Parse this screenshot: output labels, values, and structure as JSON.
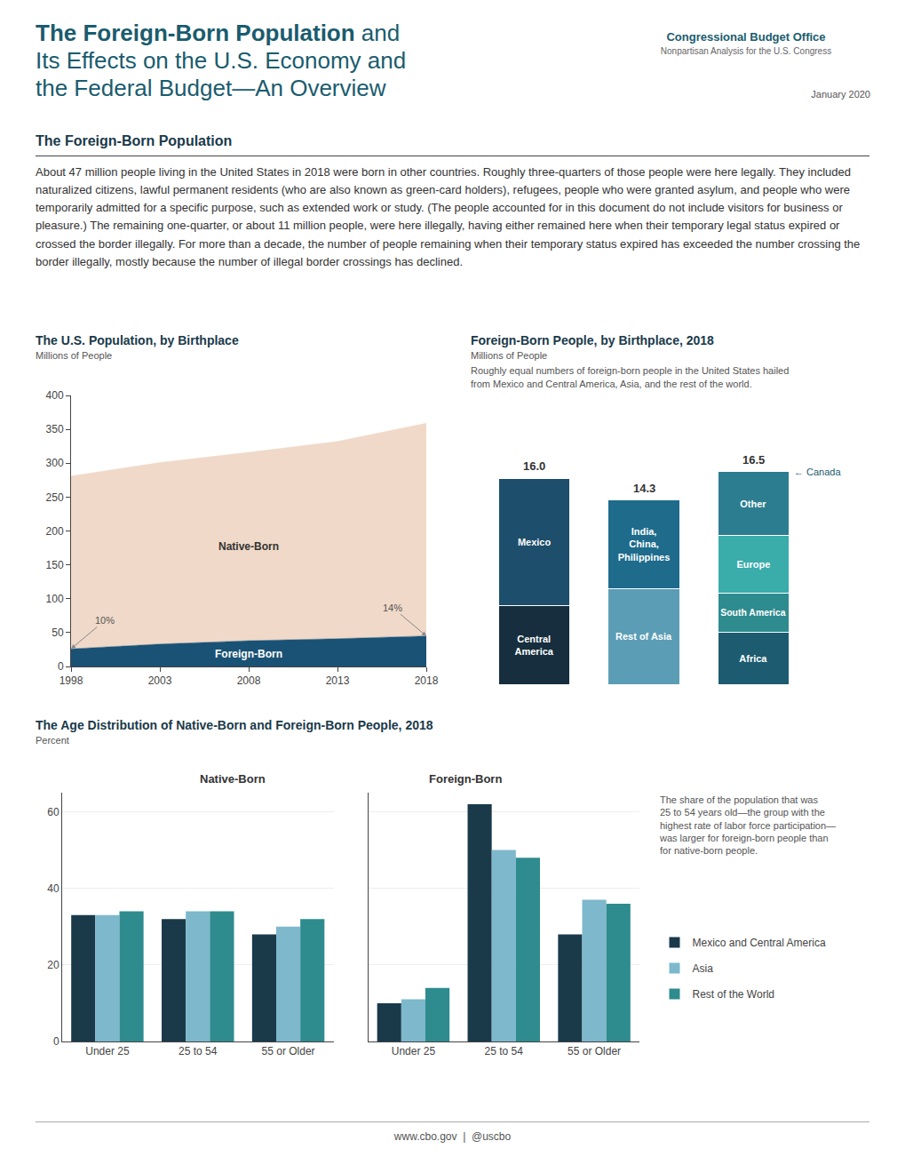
{
  "page": {
    "title_bold": "The Foreign-Born Population",
    "title_rest": " and\nIts Effects on the U.S. Economy and\nthe Federal Budget—An Overview",
    "organization": "Congressional Budget Office",
    "tagline": "Nonpartisan Analysis for the U.S. Congress",
    "date": "January 2020",
    "section_title": "The Foreign-Born Population",
    "body_text": "About 47 million people living in the United States in 2018 were born in other countries. Roughly three-quarters of those people were here legally. They included naturalized citizens, lawful permanent residents (who are also known as green-card holders), refugees, people who were granted asylum, and people who were temporarily admitted for a specific purpose, such as extended work or study. (The people accounted for in this document do not include visitors for business or pleasure.) The remaining one-quarter, or about 11 million people, were here illegally, having either remained here when their temporary legal status expired or crossed the border illegally. For more than a decade, the number of people remaining when their temporary status expired has exceeded the number crossing the border illegally, mostly because the number of illegal border crossings has declined.",
    "footer": "www.cbo.gov  |  @uscbo"
  },
  "chart_data": [
    {
      "type": "area",
      "stacked": true,
      "title": "The U.S. Population, by Birthplace",
      "subtitle": "Millions of People",
      "x": [
        1998,
        2003,
        2008,
        2013,
        2018
      ],
      "xlim": [
        1998,
        2018
      ],
      "xticks": [
        1998,
        2003,
        2008,
        2013,
        2018
      ],
      "ylim": [
        0,
        400
      ],
      "yticks": [
        0,
        50,
        100,
        150,
        200,
        250,
        300,
        350,
        400
      ],
      "grid": false,
      "series": [
        {
          "name": "Foreign-Born",
          "color": "#1a5276",
          "values": [
            26,
            33,
            38,
            41,
            45
          ]
        },
        {
          "name": "Native-Born",
          "color": "#f0d9c8",
          "values": [
            255,
            268,
            278,
            291,
            314
          ]
        }
      ],
      "annotations": [
        {
          "text": "10%",
          "x": 1998,
          "y": 26
        },
        {
          "text": "14%",
          "x": 2018,
          "y": 45
        }
      ]
    },
    {
      "type": "bar",
      "stacked": true,
      "title": "Foreign-Born People, by Birthplace, 2018",
      "subtitle": "Millions of People",
      "note": "Roughly equal numbers of foreign-born people in the United States hailed\nfrom Mexico and Central America, Asia, and the rest of the world.",
      "categories": [
        null,
        null,
        null
      ],
      "tick_labels": false,
      "ylim": [
        0,
        20
      ],
      "totals": [
        16.0,
        14.3,
        16.5
      ],
      "total_labels": [
        "16.0",
        "14.3",
        "16.5"
      ],
      "series": [
        {
          "name": "Central\nAmerica",
          "color": "#162e3e",
          "values": [
            6.08,
            null,
            null
          ]
        },
        {
          "name": "Mexico",
          "color": "#1d4e6b",
          "values": [
            9.92,
            null,
            null
          ]
        },
        {
          "name": "Rest of Asia",
          "color": "#5b9db5",
          "values": [
            null,
            7.436,
            null
          ]
        },
        {
          "name": "India,\nChina,\nPhilippines",
          "color": "#1e6b8c",
          "values": [
            null,
            6.864,
            null
          ]
        },
        {
          "name": "Africa",
          "color": "#1d5c70",
          "values": [
            null,
            null,
            4.0425
          ]
        },
        {
          "name": "South America",
          "color": "#2e8b8e",
          "values": [
            null,
            null,
            3.0525
          ]
        },
        {
          "name": "Europe",
          "color": "#3aacaa",
          "values": [
            null,
            null,
            4.455
          ]
        },
        {
          "name": "Other",
          "color": "#2c7d8f",
          "values": [
            null,
            null,
            4.95
          ]
        }
      ],
      "annotations": [
        {
          "text": "← Canada",
          "x": 2,
          "y": 16.5
        }
      ]
    },
    {
      "type": "bar",
      "title": "The Age Distribution of Native-Born and Foreign-Born People, 2018",
      "subtitle": "Percent",
      "note": "The share of the population that was\n25 to 54 years old—the group with the\nhighest rate of labor force participation—\nwas larger for foreign-born people than\nfor native-born people.",
      "categories": [
        "Under 25",
        "25 to 54",
        "55 or Older"
      ],
      "ylim": [
        0,
        65
      ],
      "yticks": [
        0,
        20,
        40,
        60
      ],
      "grid": true,
      "legend": "right",
      "panels": [
        {
          "title": "Native-Born",
          "series": [
            {
              "name": "Mexico and Central America",
              "color": "#1a3a4a",
              "values": [
                33,
                32,
                28
              ]
            },
            {
              "name": "Asia",
              "color": "#7eb8cc",
              "values": [
                33,
                34,
                30
              ]
            },
            {
              "name": "Rest of the World",
              "color": "#2e8b8e",
              "values": [
                34,
                34,
                32
              ]
            }
          ]
        },
        {
          "title": "Foreign-Born",
          "tick_labels": "x",
          "series": [
            {
              "name": "Mexico and Central America",
              "color": "#1a3a4a",
              "values": [
                10,
                62,
                28
              ]
            },
            {
              "name": "Asia",
              "color": "#7eb8cc",
              "values": [
                11,
                50,
                37
              ]
            },
            {
              "name": "Rest of the World",
              "color": "#2e8b8e",
              "values": [
                14,
                48,
                36
              ]
            }
          ]
        }
      ]
    }
  ]
}
